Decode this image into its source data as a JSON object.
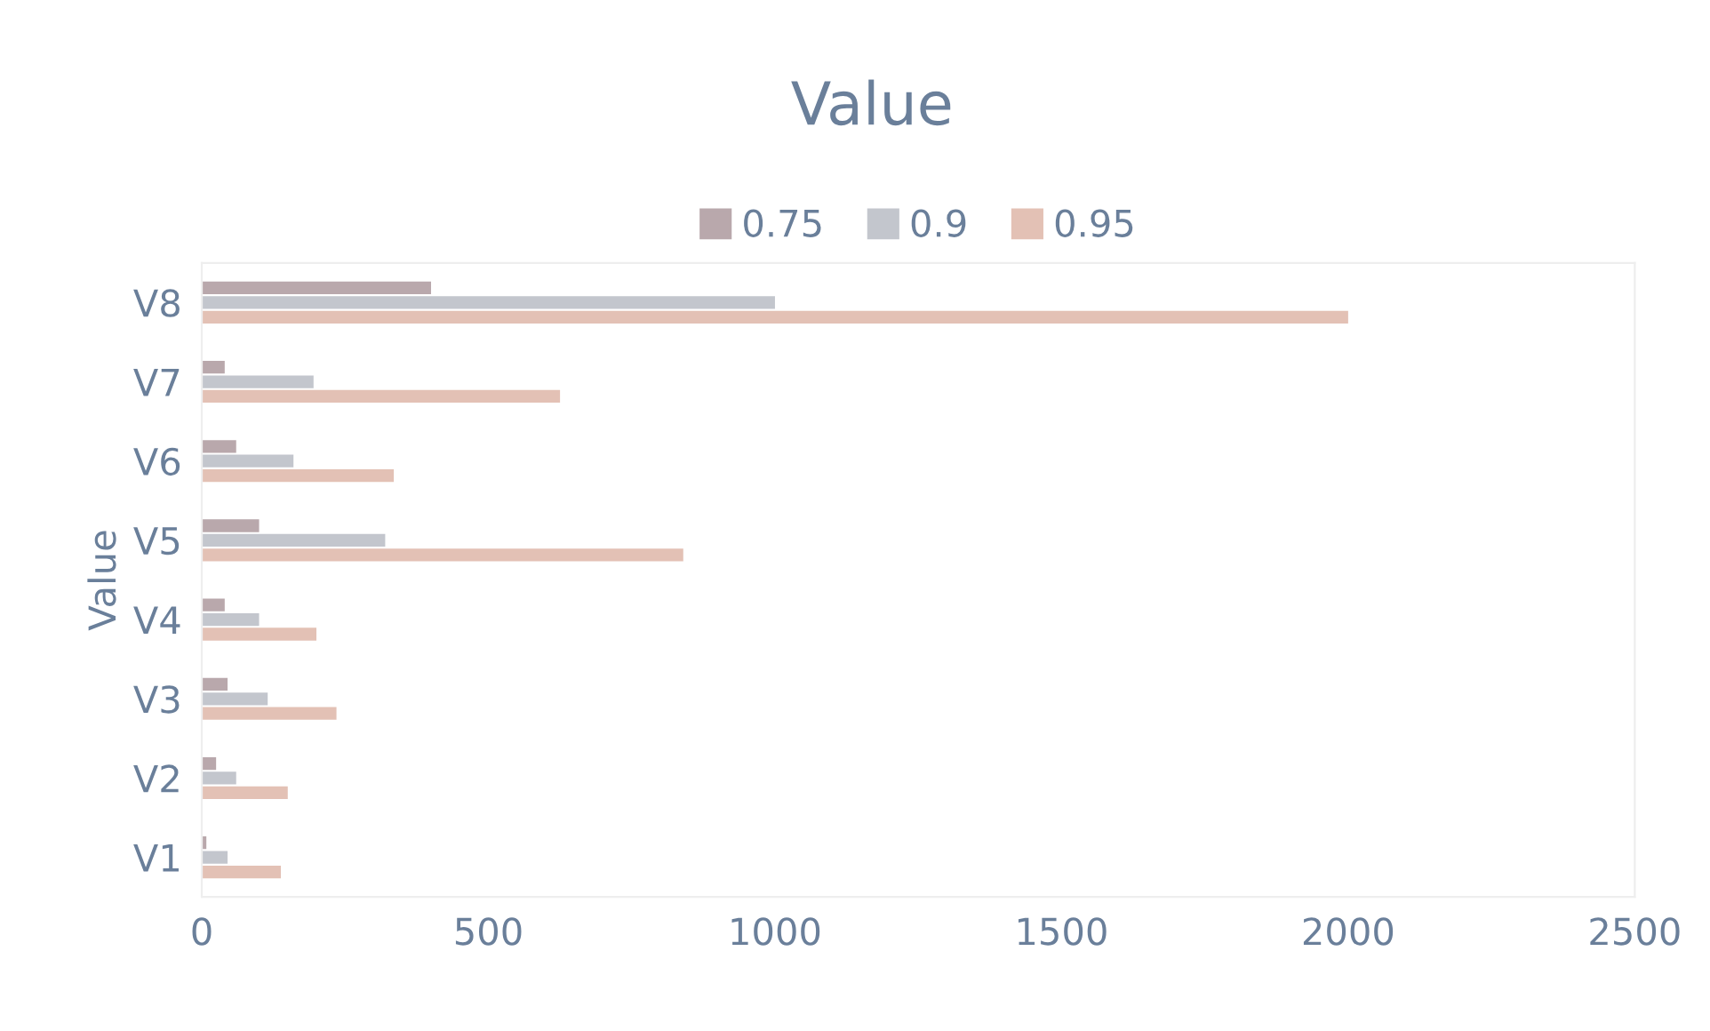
{
  "chart_data": {
    "type": "bar",
    "orientation": "horizontal",
    "title": "Value",
    "ylabel": "Value",
    "categories": [
      "V8",
      "V7",
      "V6",
      "V5",
      "V4",
      "V3",
      "V2",
      "V1"
    ],
    "series": [
      {
        "name": "0.75",
        "color": "#b9a8ac",
        "values": [
          400,
          40,
          60,
          100,
          40,
          45,
          25,
          8
        ]
      },
      {
        "name": "0.9",
        "color": "#c3c6cd",
        "values": [
          1000,
          195,
          160,
          320,
          100,
          115,
          60,
          45
        ]
      },
      {
        "name": "0.95",
        "color": "#e3c1b5",
        "values": [
          2000,
          625,
          335,
          840,
          200,
          235,
          150,
          138
        ]
      }
    ],
    "xlim": [
      0,
      2500
    ],
    "xticks": [
      0,
      500,
      1000,
      1500,
      2000,
      2500
    ],
    "grid": false,
    "legend": "top"
  }
}
